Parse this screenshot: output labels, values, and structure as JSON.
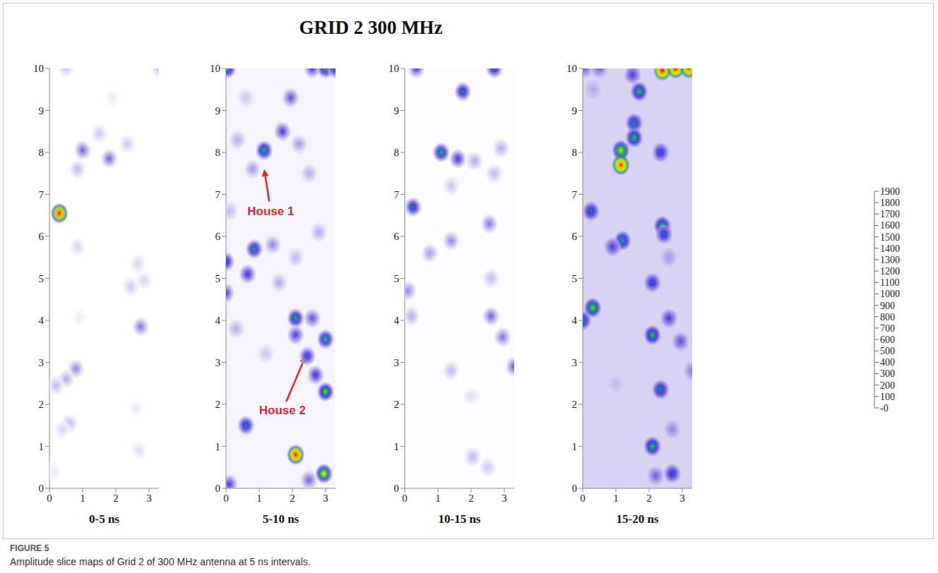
{
  "title": "GRID 2 300 MHz",
  "figure_label": "FIGURE 5",
  "caption": "Amplitude slice maps of Grid 2 of 300 MHz antenna at 5 ns intervals.",
  "colorbar": {
    "range": [
      0,
      1900
    ],
    "ticks": [
      {
        "value": 0,
        "label": "-0"
      },
      100,
      200,
      300,
      400,
      500,
      600,
      700,
      800,
      900,
      1000,
      1100,
      1200,
      1300,
      1400,
      1500,
      1600,
      1700,
      1800,
      1900
    ],
    "colors": [
      "#ffffff",
      "#f4f2fc",
      "#e2ddf6",
      "#cdc6f0",
      "#b3a8ea",
      "#9585e4",
      "#6f5ee0",
      "#3f3ddf",
      "#2f5fd0",
      "#14a05a",
      "#2ec82e",
      "#7ee01a",
      "#c8f000",
      "#f0f000",
      "#ffe000",
      "#ffb400",
      "#ff8c00",
      "#ff5000",
      "#ff1e00",
      "#e60000"
    ]
  },
  "chart_data": [
    {
      "type": "heatmap",
      "title": "0-5 ns",
      "xlim": [
        0,
        3.3
      ],
      "xticks": [
        0,
        1,
        2,
        3
      ],
      "ylim": [
        0,
        10
      ],
      "yticks": [
        0,
        1,
        2,
        3,
        4,
        5,
        6,
        7,
        8,
        9,
        10
      ],
      "background": 0,
      "anomalies": [
        {
          "x": 0.3,
          "y": 6.55,
          "amplitude": 1900
        },
        {
          "x": 0.5,
          "y": 10,
          "amplitude": 300
        },
        {
          "x": 1.0,
          "y": 8.05,
          "amplitude": 600
        },
        {
          "x": 1.8,
          "y": 7.85,
          "amplitude": 600
        },
        {
          "x": 0.85,
          "y": 7.6,
          "amplitude": 350
        },
        {
          "x": 1.5,
          "y": 8.45,
          "amplitude": 300
        },
        {
          "x": 2.35,
          "y": 8.2,
          "amplitude": 300
        },
        {
          "x": 1.9,
          "y": 9.3,
          "amplitude": 150
        },
        {
          "x": 0.8,
          "y": 2.85,
          "amplitude": 500
        },
        {
          "x": 0.5,
          "y": 2.6,
          "amplitude": 400
        },
        {
          "x": 0.2,
          "y": 2.45,
          "amplitude": 350
        },
        {
          "x": 0.6,
          "y": 1.55,
          "amplitude": 350
        },
        {
          "x": 0.4,
          "y": 1.4,
          "amplitude": 250
        },
        {
          "x": 2.75,
          "y": 3.85,
          "amplitude": 550
        },
        {
          "x": 2.45,
          "y": 4.8,
          "amplitude": 300
        },
        {
          "x": 2.85,
          "y": 4.95,
          "amplitude": 250
        },
        {
          "x": 2.65,
          "y": 5.35,
          "amplitude": 250
        },
        {
          "x": 0.85,
          "y": 5.75,
          "amplitude": 250
        },
        {
          "x": 2.7,
          "y": 0.9,
          "amplitude": 200
        },
        {
          "x": 0.9,
          "y": 4.05,
          "amplitude": 150
        },
        {
          "x": 3.3,
          "y": 10,
          "amplitude": 300
        },
        {
          "x": 0.1,
          "y": 0.4,
          "amplitude": 150
        },
        {
          "x": 2.6,
          "y": 1.9,
          "amplitude": 150
        }
      ],
      "annotations": []
    },
    {
      "type": "heatmap",
      "title": "5-10 ns",
      "xlim": [
        0,
        3.3
      ],
      "xticks": [
        0,
        1,
        2,
        3
      ],
      "ylim": [
        0,
        10
      ],
      "yticks": [
        0,
        1,
        2,
        3,
        4,
        5,
        6,
        7,
        8,
        9,
        10
      ],
      "background": 80,
      "anomalies": [
        {
          "x": 1.15,
          "y": 8.05,
          "amplitude": 1000
        },
        {
          "x": 1.7,
          "y": 8.5,
          "amplitude": 700
        },
        {
          "x": 1.95,
          "y": 9.3,
          "amplitude": 650
        },
        {
          "x": 0.85,
          "y": 5.7,
          "amplitude": 950
        },
        {
          "x": 0.65,
          "y": 5.1,
          "amplitude": 750
        },
        {
          "x": 0,
          "y": 5.4,
          "amplitude": 850
        },
        {
          "x": 0,
          "y": 4.65,
          "amplitude": 700
        },
        {
          "x": 0.6,
          "y": 1.5,
          "amplitude": 900
        },
        {
          "x": 2.1,
          "y": 0.8,
          "amplitude": 1900
        },
        {
          "x": 2.95,
          "y": 0.35,
          "amplitude": 1300
        },
        {
          "x": 2.1,
          "y": 4.05,
          "amplitude": 1000
        },
        {
          "x": 2.1,
          "y": 3.65,
          "amplitude": 700
        },
        {
          "x": 2.45,
          "y": 3.15,
          "amplitude": 800
        },
        {
          "x": 2.6,
          "y": 4.05,
          "amplitude": 650
        },
        {
          "x": 3.0,
          "y": 3.55,
          "amplitude": 1000
        },
        {
          "x": 2.7,
          "y": 2.7,
          "amplitude": 750
        },
        {
          "x": 3.0,
          "y": 2.3,
          "amplitude": 1100
        },
        {
          "x": 2.5,
          "y": 0.2,
          "amplitude": 600
        },
        {
          "x": 0.05,
          "y": 10,
          "amplitude": 1000
        },
        {
          "x": 2.6,
          "y": 10,
          "amplitude": 700
        },
        {
          "x": 3.0,
          "y": 10,
          "amplitude": 1000
        },
        {
          "x": 3.3,
          "y": 10,
          "amplitude": 900
        },
        {
          "x": 0.8,
          "y": 7.6,
          "amplitude": 450
        },
        {
          "x": 0.35,
          "y": 8.3,
          "amplitude": 400
        },
        {
          "x": 0.1,
          "y": 6.6,
          "amplitude": 350
        },
        {
          "x": 2.2,
          "y": 8.2,
          "amplitude": 450
        },
        {
          "x": 2.5,
          "y": 7.5,
          "amplitude": 400
        },
        {
          "x": 1.6,
          "y": 4.9,
          "amplitude": 400
        },
        {
          "x": 2.1,
          "y": 5.5,
          "amplitude": 350
        },
        {
          "x": 0.3,
          "y": 3.8,
          "amplitude": 400
        },
        {
          "x": 1.2,
          "y": 3.2,
          "amplitude": 300
        },
        {
          "x": 0.1,
          "y": 0.1,
          "amplitude": 700
        },
        {
          "x": 2.8,
          "y": 6.1,
          "amplitude": 400
        },
        {
          "x": 0.6,
          "y": 9.3,
          "amplitude": 300
        },
        {
          "x": 1.4,
          "y": 5.8,
          "amplitude": 500
        }
      ],
      "annotations": [
        {
          "text": "House 1",
          "xy": [
            1.15,
            7.6
          ],
          "xytext": [
            1.35,
            6.6
          ]
        },
        {
          "text": "House 2",
          "xy": [
            2.4,
            3.15
          ],
          "xytext": [
            1.7,
            1.85
          ]
        }
      ]
    },
    {
      "type": "heatmap",
      "title": "10-15 ns",
      "xlim": [
        0,
        3.3
      ],
      "xticks": [
        0,
        1,
        2,
        3
      ],
      "ylim": [
        0,
        10
      ],
      "yticks": [
        0,
        1,
        2,
        3,
        4,
        5,
        6,
        7,
        8,
        9,
        10
      ],
      "background": 30,
      "anomalies": [
        {
          "x": 0.35,
          "y": 10,
          "amplitude": 700
        },
        {
          "x": 1.75,
          "y": 9.45,
          "amplitude": 900
        },
        {
          "x": 2.7,
          "y": 10,
          "amplitude": 900
        },
        {
          "x": 1.1,
          "y": 8.0,
          "amplitude": 1000
        },
        {
          "x": 1.6,
          "y": 7.85,
          "amplitude": 750
        },
        {
          "x": 0.25,
          "y": 6.7,
          "amplitude": 900
        },
        {
          "x": 0.75,
          "y": 5.6,
          "amplitude": 450
        },
        {
          "x": 1.4,
          "y": 5.9,
          "amplitude": 500
        },
        {
          "x": 0.1,
          "y": 4.7,
          "amplitude": 500
        },
        {
          "x": 0.2,
          "y": 4.1,
          "amplitude": 400
        },
        {
          "x": 2.55,
          "y": 6.3,
          "amplitude": 550
        },
        {
          "x": 2.6,
          "y": 5.0,
          "amplitude": 350
        },
        {
          "x": 2.6,
          "y": 4.1,
          "amplitude": 600
        },
        {
          "x": 2.95,
          "y": 3.6,
          "amplitude": 550
        },
        {
          "x": 3.3,
          "y": 2.9,
          "amplitude": 650
        },
        {
          "x": 1.4,
          "y": 2.8,
          "amplitude": 350
        },
        {
          "x": 2.05,
          "y": 0.75,
          "amplitude": 350
        },
        {
          "x": 2.5,
          "y": 0.5,
          "amplitude": 300
        },
        {
          "x": 2.9,
          "y": 8.1,
          "amplitude": 400
        },
        {
          "x": 2.7,
          "y": 7.5,
          "amplitude": 350
        },
        {
          "x": 2.1,
          "y": 7.8,
          "amplitude": 400
        },
        {
          "x": 1.4,
          "y": 7.2,
          "amplitude": 300
        },
        {
          "x": 2.0,
          "y": 2.2,
          "amplitude": 200
        }
      ],
      "annotations": []
    },
    {
      "type": "heatmap",
      "title": "15-20 ns",
      "xlim": [
        0,
        3.3
      ],
      "xticks": [
        0,
        1,
        2,
        3
      ],
      "ylim": [
        0,
        10
      ],
      "yticks": [
        0,
        1,
        2,
        3,
        4,
        5,
        6,
        7,
        8,
        9,
        10
      ],
      "background": 250,
      "anomalies": [
        {
          "x": 0.05,
          "y": 10,
          "amplitude": 600
        },
        {
          "x": 0.5,
          "y": 10,
          "amplitude": 600
        },
        {
          "x": 1.7,
          "y": 9.45,
          "amplitude": 1000
        },
        {
          "x": 1.5,
          "y": 9.85,
          "amplitude": 700
        },
        {
          "x": 2.4,
          "y": 9.95,
          "amplitude": 1900
        },
        {
          "x": 2.8,
          "y": 10,
          "amplitude": 1900
        },
        {
          "x": 3.2,
          "y": 10,
          "amplitude": 1800
        },
        {
          "x": 1.15,
          "y": 8.05,
          "amplitude": 1200
        },
        {
          "x": 1.15,
          "y": 7.7,
          "amplitude": 1800
        },
        {
          "x": 1.55,
          "y": 8.7,
          "amplitude": 900
        },
        {
          "x": 1.55,
          "y": 8.35,
          "amplitude": 1000
        },
        {
          "x": 2.35,
          "y": 8.0,
          "amplitude": 800
        },
        {
          "x": 0.25,
          "y": 6.6,
          "amplitude": 850
        },
        {
          "x": 1.2,
          "y": 5.9,
          "amplitude": 950
        },
        {
          "x": 0.9,
          "y": 5.75,
          "amplitude": 700
        },
        {
          "x": 2.4,
          "y": 6.25,
          "amplitude": 1000
        },
        {
          "x": 2.45,
          "y": 6.05,
          "amplitude": 800
        },
        {
          "x": 2.1,
          "y": 4.9,
          "amplitude": 800
        },
        {
          "x": 0.3,
          "y": 4.3,
          "amplitude": 1100
        },
        {
          "x": 0,
          "y": 4.0,
          "amplitude": 900
        },
        {
          "x": 2.1,
          "y": 3.65,
          "amplitude": 1000
        },
        {
          "x": 2.6,
          "y": 4.05,
          "amplitude": 700
        },
        {
          "x": 2.95,
          "y": 3.5,
          "amplitude": 650
        },
        {
          "x": 3.3,
          "y": 2.8,
          "amplitude": 550
        },
        {
          "x": 2.35,
          "y": 2.35,
          "amplitude": 900
        },
        {
          "x": 2.1,
          "y": 1.0,
          "amplitude": 1000
        },
        {
          "x": 2.7,
          "y": 1.4,
          "amplitude": 500
        },
        {
          "x": 2.7,
          "y": 0.35,
          "amplitude": 800
        },
        {
          "x": 2.2,
          "y": 0.3,
          "amplitude": 600
        },
        {
          "x": 0.3,
          "y": 9.5,
          "amplitude": 400
        },
        {
          "x": 1.0,
          "y": 2.5,
          "amplitude": 350
        },
        {
          "x": 2.6,
          "y": 5.5,
          "amplitude": 450
        }
      ],
      "annotations": []
    }
  ]
}
